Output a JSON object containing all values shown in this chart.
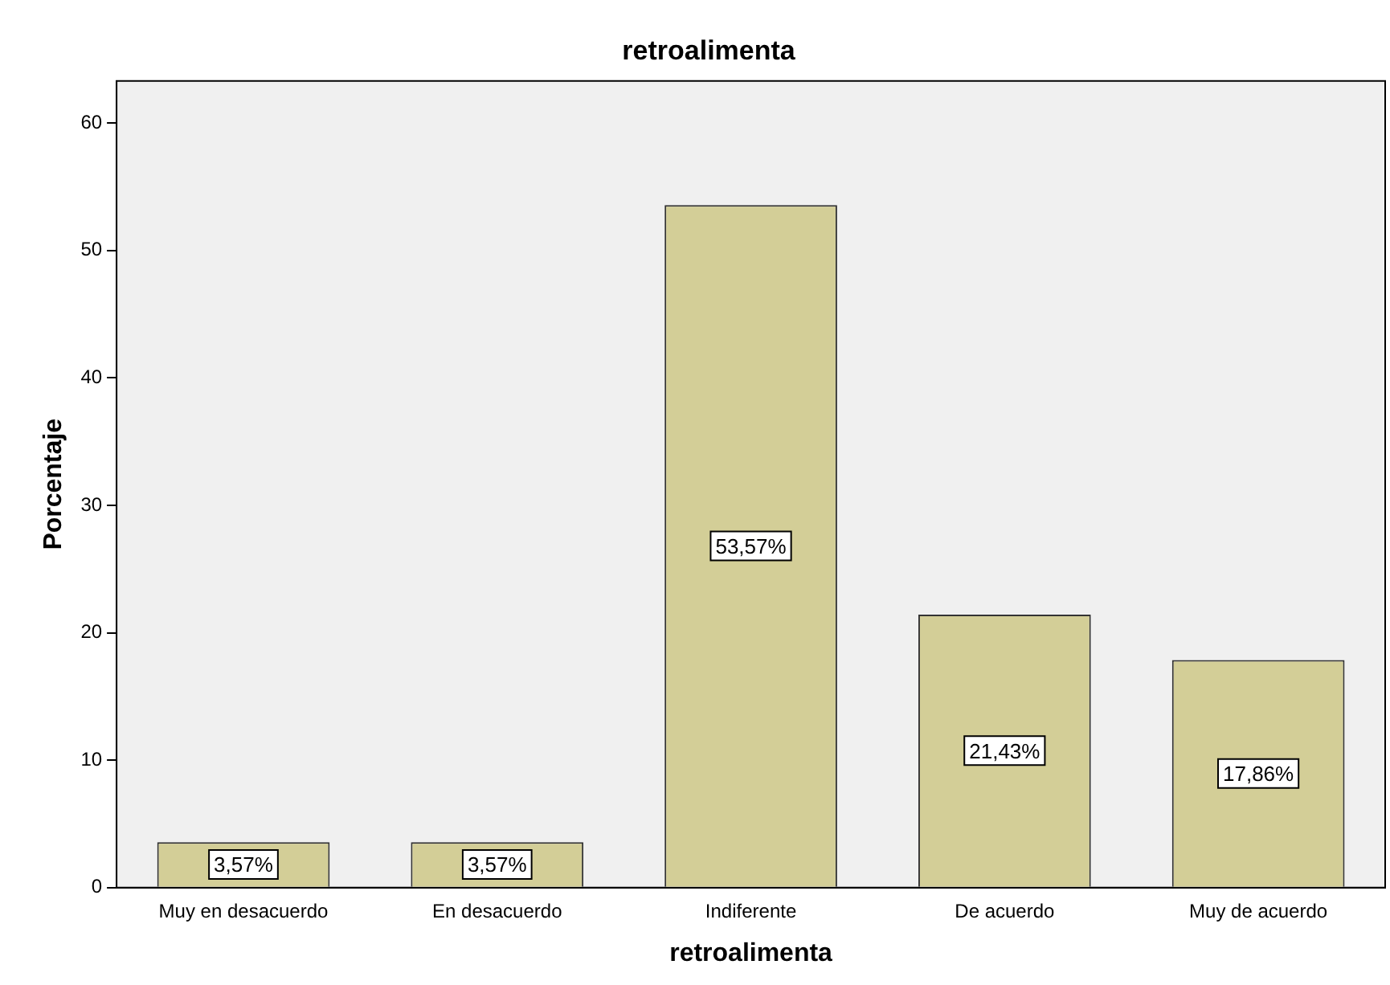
{
  "chart_data": {
    "type": "bar",
    "title": "retroalimenta",
    "xlabel": "retroalimenta",
    "ylabel": "Porcentaje",
    "categories": [
      "Muy en desacuerdo",
      "En desacuerdo",
      "Indiferente",
      "De acuerdo",
      "Muy de acuerdo"
    ],
    "values": [
      3.57,
      3.57,
      53.57,
      21.43,
      17.86
    ],
    "value_labels": [
      "3,57%",
      "3,57%",
      "53,57%",
      "21,43%",
      "17,86%"
    ],
    "color": "#d3ce97",
    "ylim": [
      0,
      63.3
    ],
    "yticks": [
      0,
      10,
      20,
      30,
      40,
      50,
      60
    ]
  }
}
